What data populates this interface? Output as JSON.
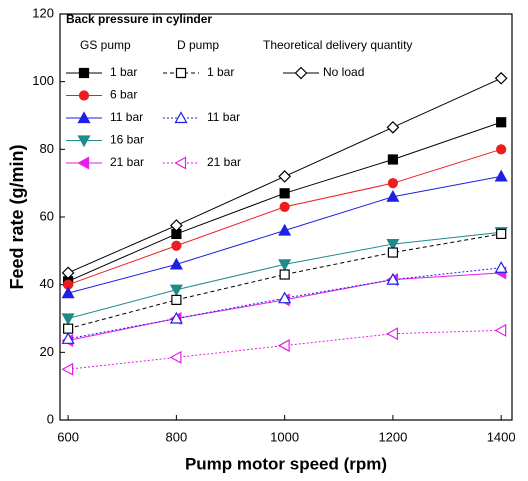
{
  "chart_data": {
    "type": "line",
    "x_label": "Pump motor speed (rpm)",
    "y_label": "Feed rate (g/min)",
    "x": [
      600,
      800,
      1000,
      1200,
      1400
    ],
    "xlim": [
      585,
      1420
    ],
    "xticks": [
      600,
      800,
      1000,
      1200,
      1400
    ],
    "ylim": [
      0,
      120
    ],
    "yticks": [
      0,
      20,
      40,
      60,
      80,
      100,
      120
    ],
    "legend": {
      "title": "Back pressure in cylinder"
    },
    "series_groups": [
      {
        "name": "GS pump",
        "series": [
          {
            "name": "1 bar",
            "color": "#000000",
            "marker": "square",
            "filled": true,
            "dash": "solid",
            "values": [
              41,
              55,
              67,
              77,
              88
            ]
          },
          {
            "name": "6 bar",
            "color": "#ee1c1c",
            "marker": "circle",
            "filled": true,
            "dash": "solid",
            "values": [
              40,
              51.5,
              63,
              70,
              80
            ]
          },
          {
            "name": "11 bar",
            "color": "#1f1fe6",
            "marker": "triangle-up",
            "filled": true,
            "dash": "solid",
            "values": [
              37.5,
              46,
              56,
              66,
              72
            ]
          },
          {
            "name": "16 bar",
            "color": "#1f8a8a",
            "marker": "triangle-down",
            "filled": true,
            "dash": "solid",
            "values": [
              30,
              38.5,
              46,
              52,
              55.5
            ]
          },
          {
            "name": "21 bar",
            "color": "#e61ee6",
            "marker": "triangle-left",
            "filled": true,
            "dash": "solid",
            "values": [
              23.5,
              30,
              35.5,
              41.5,
              43.5
            ]
          }
        ]
      },
      {
        "name": "D pump",
        "series": [
          {
            "name": "1 bar",
            "color": "#000000",
            "marker": "square",
            "filled": false,
            "dash": "dashed",
            "values": [
              27,
              35.5,
              43,
              49.5,
              55
            ]
          },
          {
            "name": "11 bar",
            "color": "#1f1fe6",
            "marker": "triangle-up",
            "filled": false,
            "dash": "dotted",
            "values": [
              24,
              30,
              36,
              41.5,
              45
            ]
          },
          {
            "name": "21 bar",
            "color": "#e61ee6",
            "marker": "triangle-left",
            "filled": false,
            "dash": "dotted",
            "values": [
              15,
              18.5,
              22,
              25.5,
              26.5
            ]
          }
        ]
      },
      {
        "name": "Theoretical delivery quantity",
        "series": [
          {
            "name": "No load",
            "color": "#000000",
            "marker": "diamond",
            "filled": false,
            "dash": "solid",
            "values": [
              43.5,
              57.5,
              72,
              86.5,
              101
            ]
          }
        ]
      }
    ]
  }
}
